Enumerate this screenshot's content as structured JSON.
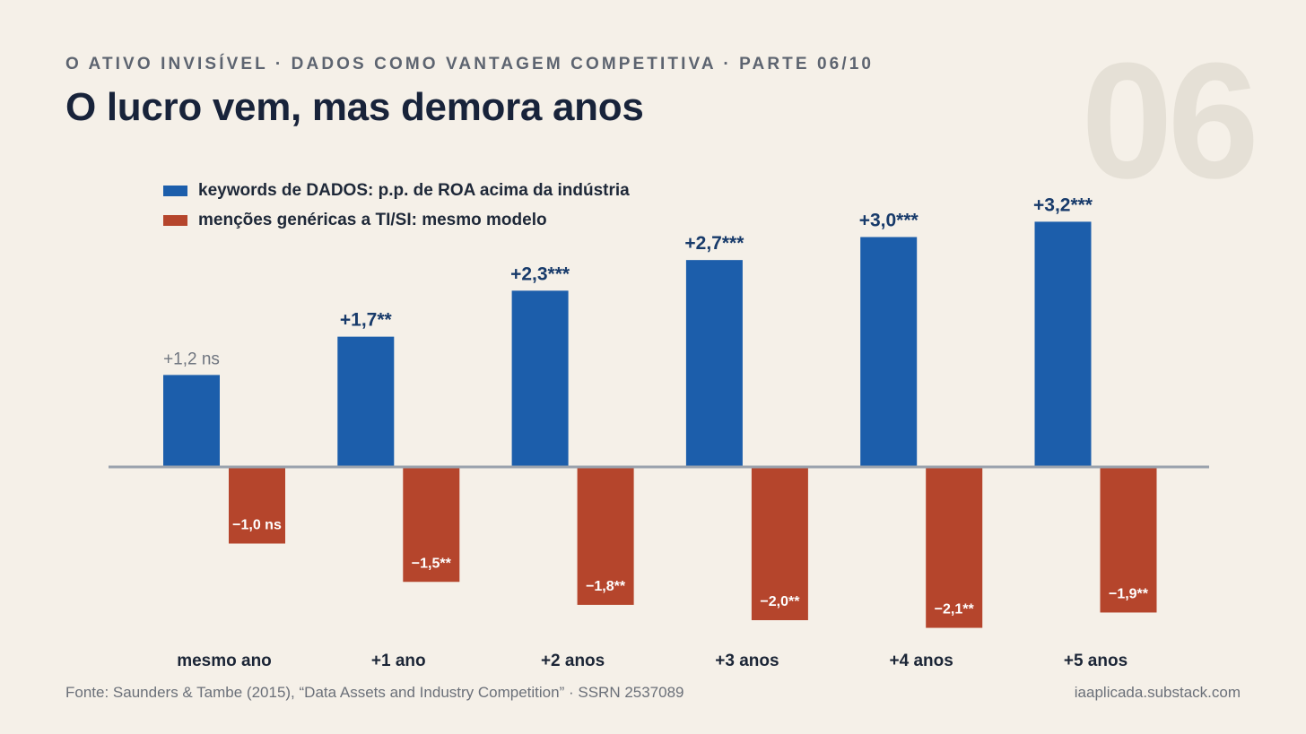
{
  "header": {
    "kicker": "O ATIVO INVISÍVEL · DADOS COMO VANTAGEM COMPETITIVA · PARTE 06/10",
    "title": "O lucro vem, mas demora anos",
    "part_number": "06"
  },
  "footer": {
    "source": "Fonte: Saunders & Tambe (2015), “Data Assets and Industry Competition” · SSRN 2537089",
    "site": "iaaplicada.substack.com"
  },
  "colors": {
    "background": "#f5f0e8",
    "series_data": "#1c5eab",
    "series_generic": "#b5452c",
    "label_strong": "#173a6a",
    "label_muted": "#707680",
    "baseline": "#9aa2ad"
  },
  "chart_data": {
    "type": "bar",
    "categories": [
      "mesmo ano",
      "+1 ano",
      "+2 anos",
      "+3 anos",
      "+4 anos",
      "+5 anos"
    ],
    "ylim": [
      -2.1,
      3.2
    ],
    "series": [
      {
        "name": "keywords de DADOS: p.p. de ROA acima da indústria",
        "values": [
          1.2,
          1.7,
          2.3,
          2.7,
          3.0,
          3.2
        ],
        "labels": [
          "+1,2 ns",
          "+1,7**",
          "+2,3***",
          "+2,7***",
          "+3,0***",
          "+3,2***"
        ]
      },
      {
        "name": "menções genéricas a TI/SI: mesmo modelo",
        "values": [
          -1.0,
          -1.5,
          -1.8,
          -2.0,
          -2.1,
          -1.9
        ],
        "labels": [
          "−1,0 ns",
          "−1,5**",
          "−1,8**",
          "−2,0**",
          "−2,1**",
          "−1,9**"
        ]
      }
    ]
  }
}
